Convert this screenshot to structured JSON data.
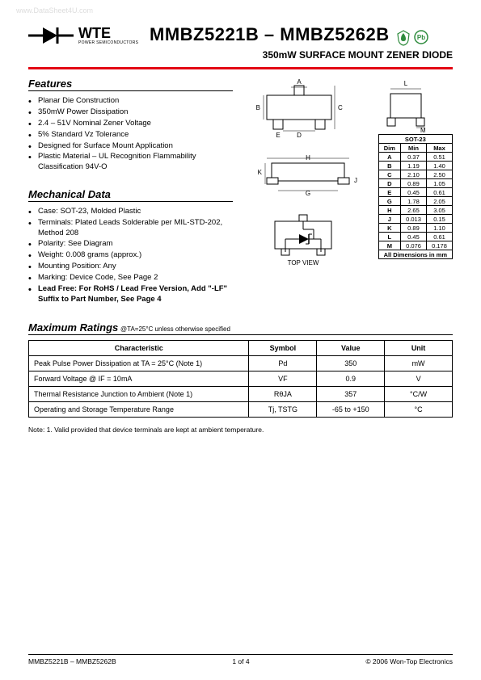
{
  "watermark": "www.DataSheet4U.com",
  "brand": {
    "name": "WTE",
    "sub": "POWER SEMICONDUCTORS"
  },
  "partNumber": "MMBZ5221B – MMBZ5262B",
  "subtitle": "350mW SURFACE MOUNT ZENER DIODE",
  "colors": {
    "accent": "#e30613",
    "rohs_green": "#2e8b3d",
    "pb_green": "#2e8b3d"
  },
  "features": {
    "title": "Features",
    "items": [
      "Planar Die Construction",
      "350mW Power Dissipation",
      "2.4 – 51V Nominal Zener Voltage",
      "5% Standard Vz Tolerance",
      "Designed for Surface Mount Application",
      "Plastic Material – UL Recognition Flammability Classification 94V-O"
    ]
  },
  "mechanical": {
    "title": "Mechanical Data",
    "items": [
      "Case: SOT-23, Molded Plastic",
      "Terminals: Plated Leads Solderable per MIL-STD-202, Method 208",
      "Polarity: See Diagram",
      "Weight: 0.008 grams (approx.)",
      "Mounting Position: Any",
      "Marking: Device Code, See Page 2"
    ],
    "boldItem": "Lead Free: For RoHS / Lead Free Version, Add \"-LF\" Suffix to Part Number, See Page 4"
  },
  "topViewLabel": "TOP VIEW",
  "dimLabels": {
    "A": "A",
    "B": "B",
    "C": "C",
    "D": "D",
    "E": "E",
    "G": "G",
    "H": "H",
    "J": "J",
    "K": "K",
    "L": "L",
    "M": "M"
  },
  "dimTable": {
    "header": "SOT-23",
    "cols": [
      "Dim",
      "Min",
      "Max"
    ],
    "rows": [
      [
        "A",
        "0.37",
        "0.51"
      ],
      [
        "B",
        "1.19",
        "1.40"
      ],
      [
        "C",
        "2.10",
        "2.50"
      ],
      [
        "D",
        "0.89",
        "1.05"
      ],
      [
        "E",
        "0.45",
        "0.61"
      ],
      [
        "G",
        "1.78",
        "2.05"
      ],
      [
        "H",
        "2.65",
        "3.05"
      ],
      [
        "J",
        "0.013",
        "0.15"
      ],
      [
        "K",
        "0.89",
        "1.10"
      ],
      [
        "L",
        "0.45",
        "0.61"
      ],
      [
        "M",
        "0.076",
        "0.178"
      ]
    ],
    "footer": "All Dimensions in mm"
  },
  "maxRatings": {
    "title": "Maximum Ratings",
    "cond": "@TA=25°C unless otherwise specified",
    "cols": [
      "Characteristic",
      "Symbol",
      "Value",
      "Unit"
    ],
    "rows": [
      [
        "Peak Pulse Power Dissipation at TA = 25°C (Note 1)",
        "Pd",
        "350",
        "mW"
      ],
      [
        "Forward Voltage @ IF = 10mA",
        "VF",
        "0.9",
        "V"
      ],
      [
        "Thermal Resistance Junction to Ambient (Note 1)",
        "RθJA",
        "357",
        "°C/W"
      ],
      [
        "Operating and Storage Temperature Range",
        "Tj, TSTG",
        "-65 to +150",
        "°C"
      ]
    ]
  },
  "note": "Note:  1. Valid provided that device terminals are kept at ambient temperature.",
  "footer": {
    "left": "MMBZ5221B – MMBZ5262B",
    "center": "1 of 4",
    "right": "© 2006 Won-Top Electronics"
  }
}
